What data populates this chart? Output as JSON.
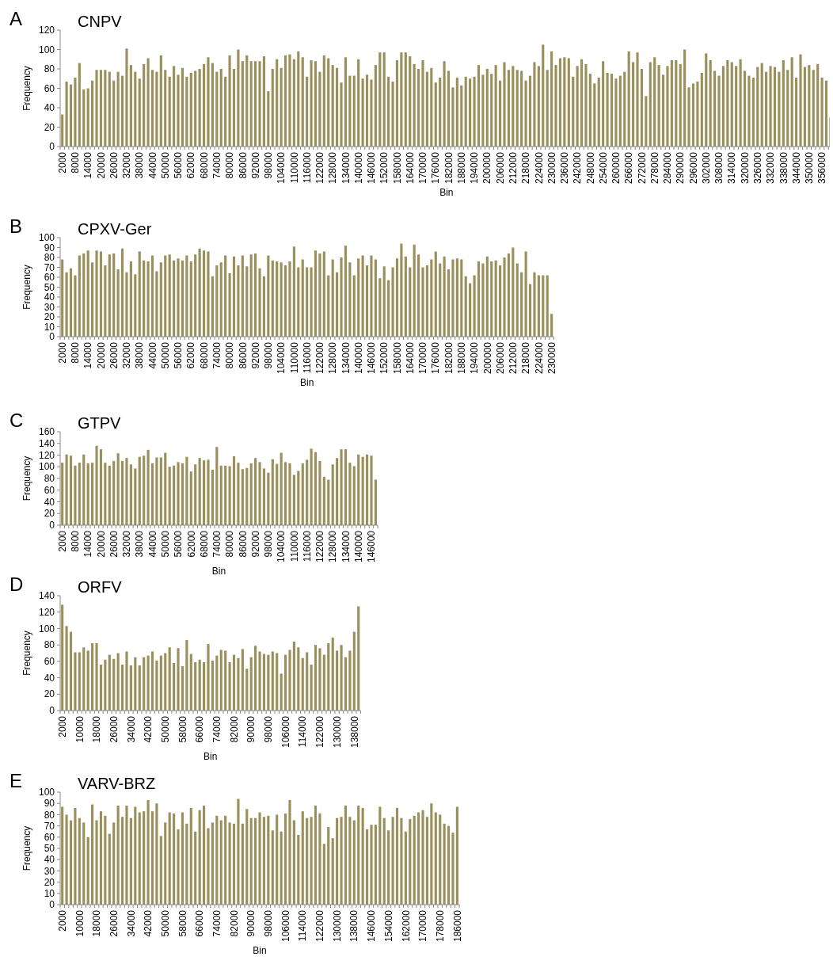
{
  "chart_data": [
    {
      "type": "bar",
      "title": "CNPV",
      "annotations": [
        "A"
      ],
      "xlabel": "Bin",
      "ylabel": "Frequency",
      "color": "#9b8f5b",
      "ylim": [
        0,
        120
      ],
      "yticks": [
        0,
        20,
        40,
        60,
        80,
        100,
        120
      ],
      "categories": [
        "2000",
        null,
        null,
        "8000",
        null,
        null,
        "14000",
        null,
        null,
        "20000",
        null,
        null,
        "26000",
        null,
        null,
        "32000",
        null,
        null,
        "38000",
        null,
        null,
        "44000",
        null,
        null,
        "50000",
        null,
        null,
        "56000",
        null,
        null,
        "62000",
        null,
        null,
        "68000",
        null,
        null,
        "74000",
        null,
        null,
        "80000",
        null,
        null,
        "86000",
        null,
        null,
        "92000",
        null,
        null,
        "98000",
        null,
        null,
        "104000",
        null,
        null,
        "110000",
        null,
        null,
        "116000",
        null,
        null,
        "122000",
        null,
        null,
        "128000",
        null,
        null,
        "134000",
        null,
        null,
        "140000",
        null,
        null,
        "146000",
        null,
        null,
        "152000",
        null,
        null,
        "158000",
        null,
        null,
        "164000",
        null,
        null,
        "170000",
        null,
        null,
        "176000",
        null,
        null,
        "182000",
        null,
        null,
        "188000",
        null,
        null,
        "194000",
        null,
        null,
        "200000",
        null,
        null,
        "206000",
        null,
        null,
        "212000",
        null,
        null,
        "218000",
        null,
        null,
        "224000",
        null,
        null,
        "230000",
        null,
        null,
        "236000",
        null,
        null,
        "242000",
        null,
        null,
        "248000",
        null,
        null,
        "254000",
        null,
        null,
        "260000",
        null,
        null,
        "266000",
        null,
        null,
        "272000",
        null,
        null,
        "278000",
        null,
        null,
        "284000",
        null,
        null,
        "290000",
        null,
        null,
        "296000",
        null,
        null,
        "302000",
        null,
        null,
        "308000",
        null,
        null,
        "314000",
        null,
        null,
        "320000",
        null,
        null,
        "326000",
        null,
        null,
        "332000",
        null,
        null,
        "338000",
        null,
        null,
        "344000",
        null,
        null,
        "350000",
        null,
        null,
        "356000",
        null,
        null
      ],
      "values": [
        33,
        67,
        64,
        71,
        86,
        59,
        60,
        68,
        79,
        79,
        79,
        77,
        68,
        77,
        73,
        101,
        84,
        77,
        70,
        85,
        91,
        79,
        77,
        94,
        79,
        72,
        83,
        74,
        81,
        72,
        76,
        78,
        80,
        85,
        92,
        86,
        77,
        80,
        72,
        94,
        80,
        100,
        88,
        94,
        88,
        88,
        88,
        93,
        57,
        80,
        90,
        81,
        94,
        95,
        90,
        98,
        92,
        72,
        89,
        88,
        77,
        94,
        91,
        84,
        81,
        66,
        92,
        73,
        73,
        90,
        70,
        74,
        69,
        84,
        97,
        97,
        72,
        67,
        89,
        97,
        97,
        93,
        85,
        80,
        89,
        77,
        81,
        66,
        71,
        88,
        78,
        61,
        71,
        63,
        72,
        70,
        72,
        84,
        74,
        80,
        75,
        84,
        68,
        87,
        79,
        83,
        79,
        78,
        68,
        73,
        87,
        83,
        105,
        79,
        98,
        84,
        91,
        92,
        91,
        72,
        83,
        90,
        85,
        75,
        65,
        71,
        88,
        76,
        75,
        70,
        73,
        77,
        98,
        87,
        97,
        80,
        52,
        87,
        92,
        84,
        74,
        83,
        89,
        89,
        85,
        100,
        61,
        65,
        67,
        76,
        96,
        89,
        78,
        73,
        83,
        89,
        87,
        83,
        90,
        78,
        73,
        71,
        82,
        86,
        77,
        83,
        82,
        77,
        89,
        79,
        92,
        71,
        95,
        82,
        84,
        79,
        85,
        71,
        68,
        30
      ]
    },
    {
      "type": "bar",
      "title": "CPXV-Ger",
      "annotations": [
        "B"
      ],
      "xlabel": "Bin",
      "ylabel": "Frequency",
      "color": "#9b8f5b",
      "ylim": [
        0,
        100
      ],
      "yticks": [
        0,
        10,
        20,
        30,
        40,
        50,
        60,
        70,
        80,
        90,
        100
      ],
      "categories": [
        "2000",
        null,
        null,
        "8000",
        null,
        null,
        "14000",
        null,
        null,
        "20000",
        null,
        null,
        "26000",
        null,
        null,
        "32000",
        null,
        null,
        "38000",
        null,
        null,
        "44000",
        null,
        null,
        "50000",
        null,
        null,
        "56000",
        null,
        null,
        "62000",
        null,
        null,
        "68000",
        null,
        null,
        "74000",
        null,
        null,
        "80000",
        null,
        null,
        "86000",
        null,
        null,
        "92000",
        null,
        null,
        "98000",
        null,
        null,
        "104000",
        null,
        null,
        "110000",
        null,
        null,
        "116000",
        null,
        null,
        "122000",
        null,
        null,
        "128000",
        null,
        null,
        "134000",
        null,
        null,
        "140000",
        null,
        null,
        "146000",
        null,
        null,
        "152000",
        null,
        null,
        "158000",
        null,
        null,
        "164000",
        null,
        null,
        "170000",
        null,
        null,
        "176000",
        null,
        null,
        "182000",
        null,
        null,
        "188000",
        null,
        null,
        "194000",
        null,
        null,
        "200000",
        null,
        null,
        "206000",
        null,
        null,
        "212000",
        null,
        null,
        "218000",
        null,
        null,
        "224000",
        null,
        null,
        "230000"
      ],
      "values": [
        78,
        65,
        69,
        62,
        82,
        84,
        87,
        75,
        87,
        86,
        72,
        83,
        84,
        68,
        89,
        65,
        76,
        63,
        86,
        77,
        76,
        82,
        66,
        75,
        82,
        83,
        77,
        79,
        77,
        82,
        76,
        83,
        89,
        87,
        86,
        61,
        72,
        75,
        82,
        64,
        81,
        72,
        82,
        71,
        83,
        84,
        69,
        61,
        82,
        77,
        76,
        75,
        72,
        76,
        91,
        70,
        78,
        70,
        70,
        87,
        84,
        86,
        62,
        78,
        65,
        80,
        92,
        75,
        62,
        79,
        82,
        72,
        82,
        78,
        59,
        71,
        57,
        70,
        79,
        94,
        81,
        70,
        93,
        83,
        70,
        72,
        78,
        86,
        74,
        81,
        68,
        78,
        79,
        78,
        61,
        54,
        62,
        76,
        74,
        81,
        76,
        77,
        72,
        80,
        84,
        90,
        74,
        65,
        86,
        53,
        65,
        62,
        62,
        62,
        23
      ]
    },
    {
      "type": "bar",
      "title": "GTPV",
      "annotations": [
        "C"
      ],
      "xlabel": "Bin",
      "ylabel": "Frequency",
      "color": "#9b8f5b",
      "ylim": [
        0,
        160
      ],
      "yticks": [
        0,
        20,
        40,
        60,
        80,
        100,
        120,
        140,
        160
      ],
      "categories": [
        "2000",
        null,
        null,
        "8000",
        null,
        null,
        "14000",
        null,
        null,
        "20000",
        null,
        null,
        "26000",
        null,
        null,
        "32000",
        null,
        null,
        "38000",
        null,
        null,
        "44000",
        null,
        null,
        "50000",
        null,
        null,
        "56000",
        null,
        null,
        "62000",
        null,
        null,
        "68000",
        null,
        null,
        "74000",
        null,
        null,
        "80000",
        null,
        null,
        "86000",
        null,
        null,
        "92000",
        null,
        null,
        "98000",
        null,
        null,
        "104000",
        null,
        null,
        "110000",
        null,
        null,
        "116000",
        null,
        null,
        "122000",
        null,
        null,
        "128000",
        null,
        null,
        "134000",
        null,
        null,
        "140000",
        null,
        null,
        "146000",
        null
      ],
      "values": [
        107,
        121,
        119,
        102,
        107,
        121,
        106,
        107,
        136,
        130,
        107,
        102,
        110,
        123,
        110,
        115,
        104,
        97,
        117,
        119,
        129,
        106,
        116,
        116,
        124,
        100,
        102,
        108,
        106,
        117,
        92,
        104,
        115,
        111,
        112,
        95,
        134,
        102,
        102,
        101,
        118,
        107,
        96,
        98,
        106,
        115,
        108,
        97,
        90,
        113,
        105,
        124,
        108,
        106,
        86,
        93,
        106,
        112,
        131,
        125,
        110,
        83,
        78,
        104,
        115,
        130,
        130,
        107,
        101,
        121,
        117,
        121,
        119,
        78
      ]
    },
    {
      "type": "bar",
      "title": "ORFV",
      "annotations": [
        "D"
      ],
      "xlabel": "Bin",
      "ylabel": "Frequency",
      "color": "#9b8f5b",
      "ylim": [
        0,
        140
      ],
      "yticks": [
        0,
        20,
        40,
        60,
        80,
        100,
        120,
        140
      ],
      "categories": [
        "2000",
        null,
        null,
        null,
        "10000",
        null,
        null,
        null,
        "18000",
        null,
        null,
        null,
        "26000",
        null,
        null,
        null,
        "34000",
        null,
        null,
        null,
        "42000",
        null,
        null,
        null,
        "50000",
        null,
        null,
        null,
        "58000",
        null,
        null,
        null,
        "66000",
        null,
        null,
        null,
        "74000",
        null,
        null,
        null,
        "82000",
        null,
        null,
        null,
        "90000",
        null,
        null,
        null,
        "98000",
        null,
        null,
        null,
        "106000",
        null,
        null,
        null,
        "114000",
        null,
        null,
        null,
        "122000",
        null,
        null,
        null,
        "130000",
        null,
        null,
        null,
        "138000",
        null
      ],
      "values": [
        129,
        103,
        96,
        71,
        71,
        77,
        73,
        82,
        82,
        56,
        62,
        68,
        63,
        70,
        56,
        72,
        55,
        65,
        55,
        65,
        67,
        72,
        61,
        67,
        70,
        77,
        58,
        76,
        54,
        86,
        69,
        59,
        62,
        59,
        81,
        61,
        67,
        74,
        73,
        59,
        68,
        64,
        75,
        51,
        65,
        79,
        72,
        69,
        68,
        72,
        70,
        45,
        68,
        74,
        84,
        77,
        64,
        71,
        56,
        80,
        76,
        68,
        82,
        89,
        73,
        80,
        65,
        73,
        96,
        127
      ]
    },
    {
      "type": "bar",
      "title": "VARV-BRZ",
      "annotations": [
        "E"
      ],
      "xlabel": "Bin",
      "ylabel": "Frequency",
      "color": "#9b8f5b",
      "ylim": [
        0,
        100
      ],
      "yticks": [
        0,
        10,
        20,
        30,
        40,
        50,
        60,
        70,
        80,
        90,
        100
      ],
      "categories": [
        "2000",
        null,
        null,
        null,
        "10000",
        null,
        null,
        null,
        "18000",
        null,
        null,
        null,
        "26000",
        null,
        null,
        null,
        "34000",
        null,
        null,
        null,
        "42000",
        null,
        null,
        null,
        "50000",
        null,
        null,
        null,
        "58000",
        null,
        null,
        null,
        "66000",
        null,
        null,
        null,
        "74000",
        null,
        null,
        null,
        "82000",
        null,
        null,
        null,
        "90000",
        null,
        null,
        null,
        "98000",
        null,
        null,
        null,
        "106000",
        null,
        null,
        null,
        "114000",
        null,
        null,
        null,
        "122000",
        null,
        null,
        null,
        "130000",
        null,
        null,
        null,
        "138000",
        null,
        null,
        null,
        "146000",
        null,
        null,
        null,
        "154000",
        null,
        null,
        null,
        "162000",
        null,
        null,
        null,
        "170000",
        null,
        null,
        null,
        "178000",
        null,
        null,
        null,
        "186000"
      ],
      "values": [
        87,
        80,
        75,
        86,
        77,
        73,
        60,
        89,
        75,
        83,
        79,
        63,
        73,
        88,
        78,
        88,
        77,
        87,
        82,
        83,
        93,
        83,
        90,
        61,
        73,
        82,
        81,
        67,
        82,
        72,
        86,
        65,
        84,
        88,
        68,
        73,
        79,
        75,
        79,
        73,
        72,
        94,
        72,
        85,
        77,
        77,
        82,
        78,
        79,
        66,
        80,
        65,
        81,
        93,
        75,
        62,
        83,
        77,
        78,
        88,
        81,
        54,
        69,
        59,
        77,
        78,
        88,
        78,
        75,
        88,
        86,
        67,
        71,
        71,
        87,
        77,
        66,
        78,
        86,
        77,
        65,
        76,
        79,
        82,
        84,
        78,
        90,
        82,
        80,
        72,
        70,
        64,
        87
      ]
    }
  ]
}
